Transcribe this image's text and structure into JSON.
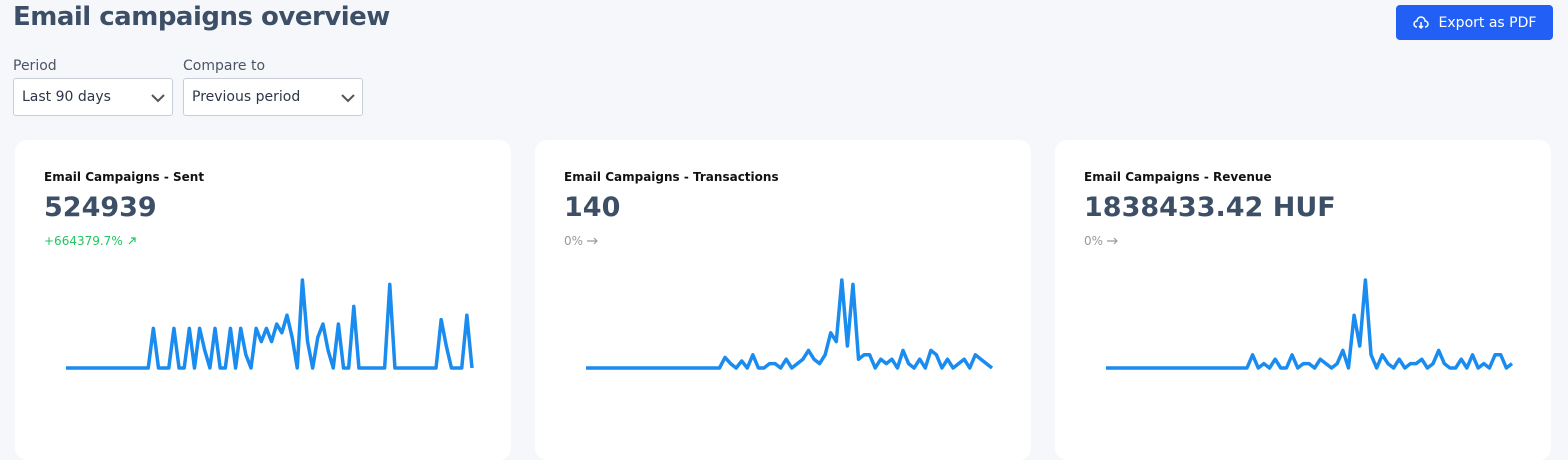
{
  "header": {
    "title": "Email campaigns overview",
    "export_button": "Export as PDF"
  },
  "filters": [
    {
      "label": "Period",
      "value": "Last 90 days"
    },
    {
      "label": "Compare to",
      "value": "Previous period"
    }
  ],
  "cards": [
    {
      "title": "Email Campaigns - Sent",
      "value": "524939",
      "change": "+664379.7%",
      "trend": "up",
      "sparkline": [
        0,
        0,
        0,
        0,
        0,
        0,
        0,
        0,
        0,
        0,
        0,
        0,
        0,
        0,
        0,
        0,
        0,
        45,
        0,
        0,
        0,
        45,
        0,
        0,
        45,
        0,
        45,
        20,
        0,
        45,
        0,
        0,
        45,
        0,
        45,
        15,
        0,
        45,
        30,
        45,
        30,
        50,
        40,
        60,
        35,
        0,
        100,
        30,
        0,
        35,
        50,
        20,
        0,
        50,
        0,
        0,
        70,
        0,
        0,
        0,
        0,
        0,
        0,
        95,
        0,
        0,
        0,
        0,
        0,
        0,
        0,
        0,
        0,
        55,
        25,
        0,
        0,
        0,
        60,
        0
      ]
    },
    {
      "title": "Email Campaigns - Transactions",
      "value": "140",
      "change": "0%",
      "trend": "flat",
      "sparkline": [
        0,
        0,
        0,
        0,
        0,
        0,
        0,
        0,
        0,
        0,
        0,
        0,
        0,
        0,
        0,
        0,
        0,
        0,
        0,
        0,
        0,
        0,
        0,
        0,
        0,
        12,
        5,
        0,
        8,
        0,
        15,
        0,
        0,
        5,
        5,
        0,
        10,
        0,
        5,
        10,
        20,
        10,
        5,
        15,
        40,
        30,
        100,
        25,
        95,
        10,
        15,
        15,
        0,
        10,
        5,
        10,
        0,
        20,
        5,
        0,
        10,
        0,
        20,
        15,
        0,
        10,
        0,
        5,
        10,
        0,
        15,
        10,
        5,
        0
      ]
    },
    {
      "title": "Email Campaigns - Revenue",
      "value": "1838433.42 HUF",
      "change": "0%",
      "trend": "flat",
      "sparkline": [
        0,
        0,
        0,
        0,
        0,
        0,
        0,
        0,
        0,
        0,
        0,
        0,
        0,
        0,
        0,
        0,
        0,
        0,
        0,
        0,
        0,
        0,
        0,
        0,
        0,
        0,
        15,
        0,
        5,
        0,
        10,
        0,
        0,
        15,
        0,
        5,
        5,
        0,
        10,
        5,
        0,
        5,
        20,
        0,
        60,
        25,
        100,
        15,
        0,
        15,
        5,
        0,
        10,
        0,
        5,
        5,
        10,
        0,
        5,
        20,
        5,
        0,
        0,
        10,
        0,
        15,
        0,
        5,
        0,
        15,
        15,
        0,
        5
      ]
    }
  ]
}
